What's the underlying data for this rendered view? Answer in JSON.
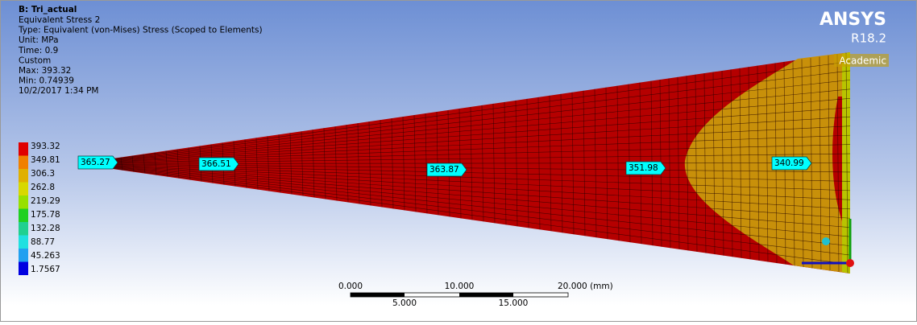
{
  "header": {
    "title": "B: Tri_actual",
    "lines": [
      "Equivalent Stress 2",
      "Type: Equivalent (von-Mises) Stress (Scoped to Elements)",
      "Unit: MPa",
      "Time: 0.9",
      "Custom",
      "Max: 393.32",
      "Min: 0.74939",
      "10/2/2017 1:34 PM"
    ]
  },
  "legend": {
    "values": [
      "393.32",
      "349.81",
      "306.3",
      "262.8",
      "219.29",
      "175.78",
      "132.28",
      "88.77",
      "45.263",
      "1.7567"
    ]
  },
  "probes": [
    "365.27",
    "366.51",
    "363.87",
    "351.98",
    "340.99"
  ],
  "scale_bar": {
    "top": [
      "0.000",
      "10.000",
      "20.000 (mm)"
    ],
    "bottom": [
      "5.000",
      "15.000"
    ]
  },
  "logo": {
    "name": "ANSYS",
    "version": "R18.2",
    "edition": "Academic"
  }
}
